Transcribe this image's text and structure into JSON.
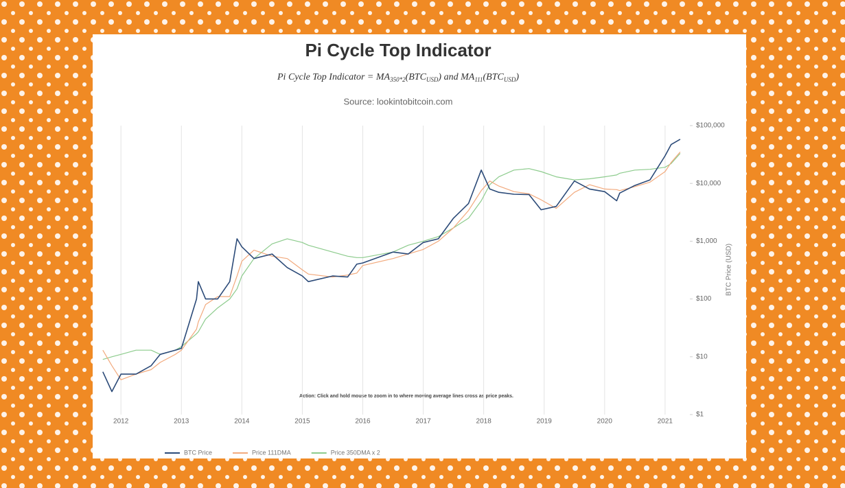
{
  "chart_data": {
    "type": "line",
    "title": "Pi Cycle Top Indicator",
    "formula": [
      "Pi Cycle Top Indicator = MA",
      "350*2",
      "(BTC",
      "USD",
      ") and MA",
      "111",
      "(BTC",
      "USD",
      ")"
    ],
    "source": "Source: lookintobitcoin.com",
    "annotation": "Action: Click and hold mouse to zoom in to where moving average lines cross as price peaks.",
    "y_label": "BTC Price (USD)",
    "yscale": "log",
    "grid": "x",
    "legend": "bottom-left",
    "xlim": [
      2011.68,
      2021.41
    ],
    "xticks": [
      2012,
      2013,
      2014,
      2015,
      2016,
      2017,
      2018,
      2019,
      2020,
      2021
    ],
    "ylim": [
      1,
      100000
    ],
    "yticks": [
      {
        "value": 1,
        "label": "$1"
      },
      {
        "value": 10,
        "label": "$10"
      },
      {
        "value": 100,
        "label": "$100"
      },
      {
        "value": 1000,
        "label": "$1,000"
      },
      {
        "value": 10000,
        "label": "$10,000"
      },
      {
        "value": 100000,
        "label": "$100,000"
      }
    ],
    "x": [
      2011.7,
      2011.85,
      2012.0,
      2012.25,
      2012.5,
      2012.65,
      2012.9,
      2013.0,
      2013.25,
      2013.28,
      2013.4,
      2013.6,
      2013.8,
      2013.92,
      2014.0,
      2014.2,
      2014.5,
      2014.75,
      2015.0,
      2015.1,
      2015.5,
      2015.75,
      2015.9,
      2016.0,
      2016.5,
      2016.75,
      2017.0,
      2017.25,
      2017.5,
      2017.75,
      2017.96,
      2018.1,
      2018.25,
      2018.5,
      2018.75,
      2018.95,
      2019.2,
      2019.5,
      2019.75,
      2020.0,
      2020.2,
      2020.25,
      2020.5,
      2020.75,
      2021.0,
      2021.1,
      2021.25
    ],
    "series": [
      {
        "name": "BTC Price",
        "color": "#2b4a78",
        "values": [
          5.5,
          2.5,
          5,
          5,
          7,
          11,
          13,
          14,
          100,
          200,
          100,
          100,
          200,
          1100,
          800,
          500,
          600,
          350,
          250,
          200,
          250,
          240,
          400,
          420,
          650,
          600,
          950,
          1100,
          2500,
          4500,
          17000,
          8000,
          7000,
          6500,
          6400,
          3500,
          4000,
          11000,
          8000,
          7200,
          5000,
          6800,
          9200,
          11500,
          30000,
          47000,
          58000
        ]
      },
      {
        "name": "Price 111DMA",
        "color": "#f2a97c",
        "values": [
          13,
          7,
          4,
          5,
          6,
          8,
          11,
          13,
          30,
          40,
          80,
          110,
          110,
          250,
          450,
          700,
          550,
          500,
          320,
          270,
          240,
          260,
          280,
          380,
          500,
          600,
          720,
          1000,
          1700,
          3400,
          7500,
          11000,
          9000,
          7200,
          6600,
          5200,
          3700,
          7000,
          9500,
          8000,
          7800,
          7500,
          8800,
          10500,
          16000,
          23000,
          35000
        ]
      },
      {
        "name": "Price 350DMA x 2",
        "color": "#8ccb8c",
        "values": [
          9,
          10,
          11,
          13,
          13,
          11,
          13,
          15,
          25,
          27,
          45,
          70,
          100,
          150,
          250,
          500,
          900,
          1100,
          950,
          850,
          650,
          550,
          520,
          520,
          650,
          850,
          1000,
          1200,
          1700,
          2500,
          5000,
          9500,
          13000,
          17000,
          18000,
          16000,
          13000,
          11500,
          12000,
          13000,
          14000,
          15000,
          17000,
          17500,
          19000,
          22000,
          33000
        ]
      }
    ]
  }
}
